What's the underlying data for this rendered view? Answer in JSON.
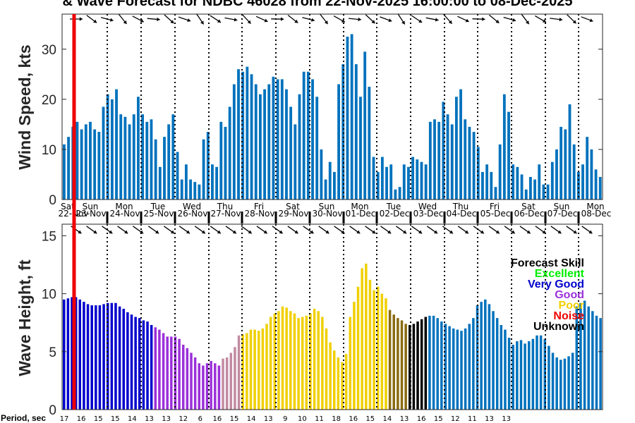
{
  "title": "& Wave Forecast for NDBC 46028 from 22-Nov-2025 16:00:00 to 08-Dec-2025",
  "legend": {
    "title": "Forecast Skill",
    "items": [
      {
        "label": "Excellent",
        "color": "#00ee00"
      },
      {
        "label": "Very Good",
        "color": "#0000cc"
      },
      {
        "label": "Good",
        "color": "#9b30d9"
      },
      {
        "label": "Poor",
        "color": "#f0d000"
      },
      {
        "label": "Noise",
        "color": "#ee0000"
      },
      {
        "label": "Unknown",
        "color": "#000000"
      }
    ]
  },
  "period_label": "Period, sec",
  "period_ticks": [
    "17",
    "16",
    "15",
    "15",
    "14",
    "13",
    "13",
    "12",
    "6",
    "16",
    "15",
    "14",
    "13",
    "9",
    "10",
    "11",
    "18",
    "16",
    "15",
    "14",
    "13",
    "16",
    "15",
    "12",
    "11",
    "13",
    "13"
  ],
  "day_names": [
    "Sat",
    "Sun",
    "Mon",
    "Tue",
    "Wed",
    "Thu",
    "Fri",
    "Sat",
    "Sun",
    "Mon",
    "Tue",
    "Wed",
    "Thu",
    "Fri",
    "Sat",
    "Sun",
    "Mon"
  ],
  "date_labels": [
    "22-Nov",
    "23-Nov",
    "24-Nov",
    "25-Nov",
    "26-Nov",
    "27-Nov",
    "28-Nov",
    "29-Nov",
    "30-Nov",
    "01-Dec",
    "02-Dec",
    "03-Dec",
    "04-Dec",
    "05-Dec",
    "06-Dec",
    "07-Dec",
    "08-Dec"
  ],
  "colors": {
    "wind_bar": "#0072bd",
    "now_line": "#ee0000",
    "axis": "#262626",
    "very_good": "#0000cc",
    "good": "#9b30d9",
    "good_fade": "#c28aa0",
    "poor": "#f0d000",
    "poor_dark": "#8a6a10",
    "unknown": "#000000",
    "swell": "#0072bd"
  },
  "chart_data": [
    {
      "type": "bar",
      "ylabel": "Wind Speed, kts",
      "ylim": [
        0,
        37
      ],
      "yticks": [
        0,
        10,
        20,
        30
      ],
      "grid": "dotted vertical lines at midnight",
      "values": [
        11.0,
        12.5,
        14.5,
        15.5,
        14.0,
        15.0,
        15.5,
        14.0,
        13.5,
        18.5,
        21.0,
        20.0,
        22.0,
        17.0,
        16.5,
        15.0,
        17.0,
        20.5,
        17.0,
        15.5,
        16.0,
        12.0,
        6.5,
        12.5,
        15.0,
        17.0,
        9.5,
        4.0,
        7.0,
        4.0,
        3.5,
        3.0,
        12.0,
        13.5,
        7.0,
        6.5,
        15.5,
        14.5,
        18.5,
        23.0,
        26.0,
        25.5,
        26.5,
        25.0,
        23.0,
        21.0,
        22.0,
        23.0,
        24.5,
        24.0,
        24.0,
        22.0,
        18.5,
        15.0,
        21.0,
        25.5,
        25.5,
        24.0,
        20.5,
        10.0,
        4.0,
        7.5,
        5.5,
        23.0,
        27.0,
        32.5,
        33.0,
        27.0,
        20.5,
        29.5,
        22.5,
        8.5,
        5.5,
        8.5,
        6.5,
        7.0,
        2.0,
        2.5,
        7.0,
        6.5,
        8.5,
        8.0,
        7.5,
        7.0,
        15.5,
        16.0,
        15.5,
        19.5,
        17.0,
        15.0,
        20.5,
        22.0,
        16.0,
        14.5,
        13.5,
        10.5,
        5.5,
        7.0,
        5.5,
        2.5,
        11.0,
        21.0,
        17.5,
        7.0,
        6.5,
        5.0,
        2.0,
        4.5,
        4.0,
        7.0,
        3.0,
        3.0,
        7.5,
        10.0,
        14.5,
        14.0,
        19.0,
        11.0,
        5.5,
        7.0,
        12.5,
        10.0,
        6.0,
        4.5
      ]
    },
    {
      "type": "bar",
      "ylabel": "Wave Height, ft",
      "ylim": [
        0,
        16
      ],
      "yticks": [
        0,
        5,
        10,
        15
      ],
      "grid": "dotted vertical lines at midnight",
      "values": [
        9.5,
        9.6,
        9.7,
        9.7,
        9.5,
        9.3,
        9.1,
        9.0,
        9.0,
        9.0,
        9.1,
        9.2,
        9.2,
        9.2,
        8.9,
        8.7,
        8.4,
        8.2,
        8.0,
        7.9,
        7.7,
        7.6,
        7.3,
        7.1,
        6.9,
        6.6,
        6.3,
        6.3,
        6.3,
        6.1,
        5.6,
        5.3,
        4.9,
        4.5,
        4.0,
        3.8,
        4.0,
        4.2,
        4.0,
        3.8,
        4.4,
        4.5,
        4.9,
        5.4,
        6.4,
        6.5,
        6.6,
        6.9,
        6.9,
        6.8,
        7.0,
        7.4,
        8.0,
        8.3,
        8.5,
        8.9,
        8.8,
        8.5,
        8.3,
        7.9,
        8.0,
        8.1,
        8.3,
        8.7,
        8.5,
        8.0,
        7.0,
        5.8,
        5.1,
        4.5,
        4.1,
        4.8,
        8.0,
        9.3,
        10.6,
        12.2,
        12.6,
        11.2,
        10.3,
        10.6,
        10.0,
        9.6,
        8.6,
        8.2,
        7.9,
        7.7,
        7.4,
        7.3,
        7.4,
        7.6,
        7.8,
        8.0,
        8.1,
        8.1,
        7.9,
        7.6,
        7.4,
        7.2,
        7.0,
        6.9,
        6.8,
        7.0,
        7.4,
        7.9,
        9.0,
        9.3,
        9.5,
        9.1,
        8.5,
        7.9,
        7.3,
        6.9,
        6.2,
        5.6,
        5.9,
        6.0,
        5.7,
        5.9,
        6.1,
        6.4,
        6.4,
        6.1,
        5.5,
        4.9,
        4.5,
        4.3,
        4.4,
        4.6,
        4.9,
        8.9,
        9.2,
        9.4,
        8.9,
        8.5,
        8.1,
        7.9
      ],
      "skill_by_index": [
        {
          "from": 0,
          "to": 22,
          "skill": "Very Good"
        },
        {
          "from": 23,
          "to": 39,
          "skill": "Good"
        },
        {
          "from": 40,
          "to": 44,
          "skill": "Good"
        },
        {
          "from": 45,
          "to": 81,
          "skill": "Poor"
        },
        {
          "from": 82,
          "to": 91,
          "skill": "Unknown"
        },
        {
          "from": 92,
          "to": 139,
          "skill": "Unknown"
        }
      ]
    }
  ]
}
